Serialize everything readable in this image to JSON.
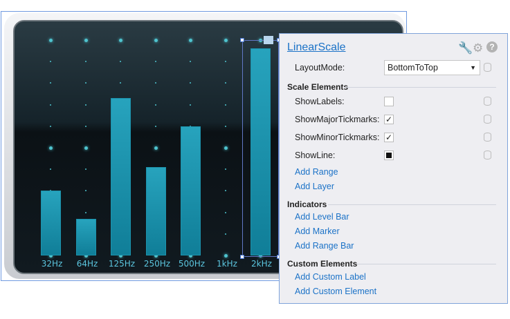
{
  "gauge": {
    "scale_min": 0,
    "scale_max": 100,
    "bars": [
      {
        "label": "32Hz",
        "value": 30
      },
      {
        "label": "64Hz",
        "value": 17
      },
      {
        "label": "125Hz",
        "value": 73
      },
      {
        "label": "250Hz",
        "value": 41
      },
      {
        "label": "500Hz",
        "value": 60
      },
      {
        "label": "1kHz",
        "value": 0
      },
      {
        "label": "2kHz",
        "value": 96
      }
    ],
    "bar_color": "#1c93ad"
  },
  "panel": {
    "title": "LinearScale",
    "icons": [
      "wrench-icon",
      "gear-icon",
      "help-icon"
    ],
    "layout_mode_label": "LayoutMode:",
    "layout_mode_value": "BottomToTop",
    "scale_elements_header": "Scale Elements",
    "show_labels": {
      "label": "ShowLabels:",
      "checked": false
    },
    "show_major": {
      "label": "ShowMajorTickmarks:",
      "checked": true
    },
    "show_minor": {
      "label": "ShowMinorTickmarks:",
      "checked": true
    },
    "show_line": {
      "label": "ShowLine:",
      "state": "indeterminate"
    },
    "add_range": "Add Range",
    "add_layer": "Add Layer",
    "indicators_header": "Indicators",
    "add_level_bar": "Add Level Bar",
    "add_marker": "Add Marker",
    "add_range_bar": "Add Range Bar",
    "custom_header": "Custom Elements",
    "add_custom_label": "Add Custom Label",
    "add_custom_element": "Add Custom Element"
  }
}
